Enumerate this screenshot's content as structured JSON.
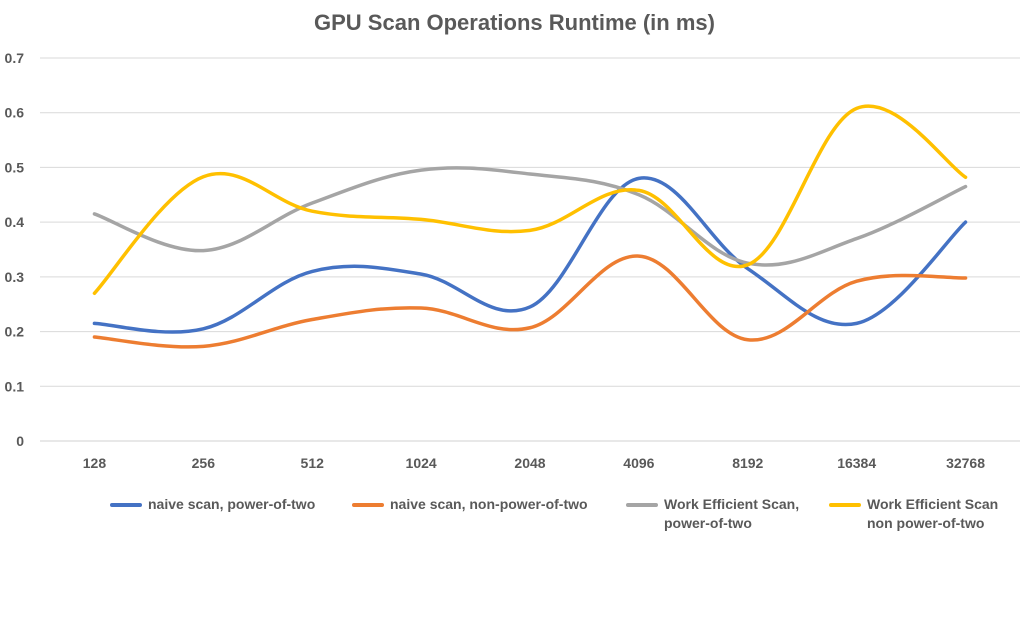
{
  "chart_data": {
    "type": "line",
    "title": "GPU Scan Operations Runtime (in ms)",
    "xlabel": "",
    "ylabel": "",
    "categories": [
      "128",
      "256",
      "512",
      "1024",
      "2048",
      "4096",
      "8192",
      "16384",
      "32768"
    ],
    "ylim": [
      0,
      0.7
    ],
    "yticks": [
      "0",
      "0.1",
      "0.2",
      "0.3",
      "0.4",
      "0.5",
      "0.6",
      "0.7"
    ],
    "grid": true,
    "smooth": true,
    "legend_position": "bottom",
    "series": [
      {
        "name": "naive scan, power-of-two",
        "color": "#4472C4",
        "values": [
          0.215,
          0.205,
          0.31,
          0.305,
          0.245,
          0.48,
          0.315,
          0.215,
          0.4
        ]
      },
      {
        "name": "naive scan, non-power-of-two",
        "color": "#ED7D31",
        "values": [
          0.19,
          0.173,
          0.222,
          0.243,
          0.207,
          0.338,
          0.185,
          0.292,
          0.298
        ]
      },
      {
        "name": "Work Efficient Scan, power-of-two",
        "color": "#A5A5A5",
        "values": [
          0.415,
          0.348,
          0.435,
          0.495,
          0.488,
          0.45,
          0.325,
          0.37,
          0.465
        ]
      },
      {
        "name": "Work Efficient Scan non power-of-two",
        "color": "#FFC000",
        "values": [
          0.27,
          0.483,
          0.42,
          0.405,
          0.385,
          0.458,
          0.322,
          0.608,
          0.482
        ]
      }
    ]
  }
}
